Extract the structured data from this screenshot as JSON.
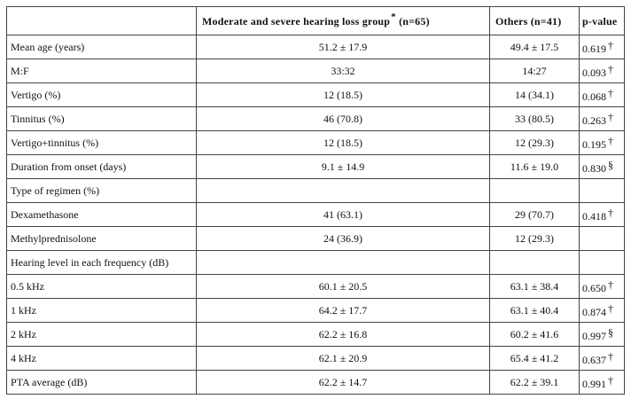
{
  "header": {
    "col1": "",
    "group": "Moderate and severe hearing loss group",
    "group_mark": "*",
    "group_n": "(n=65)",
    "others": "Others",
    "others_n": "(n=41)",
    "pvalue": "p-value"
  },
  "rows": [
    {
      "label": "Mean age (years)",
      "group": "51.2 ± 17.9",
      "others": "49.4 ± 17.5",
      "p": "0.619",
      "mark": "†"
    },
    {
      "label": "M:F",
      "group": "33:32",
      "others": "14:27",
      "p": "0.093",
      "mark": "†"
    },
    {
      "label": "Vertigo (%)",
      "group": "12 (18.5)",
      "others": "14 (34.1)",
      "p": "0.068",
      "mark": "†"
    },
    {
      "label": "Tinnitus (%)",
      "group": "46 (70.8)",
      "others": "33 (80.5)",
      "p": "0.263",
      "mark": "†"
    },
    {
      "label": "Vertigo+tinnitus (%)",
      "group": "12 (18.5)",
      "others": "12 (29.3)",
      "p": "0.195",
      "mark": "†"
    },
    {
      "label": "Duration from onset (days)",
      "group": "9.1 ± 14.9",
      "others": "11.6 ± 19.0",
      "p": "0.830",
      "mark": "§"
    },
    {
      "label": "Type of regimen (%)",
      "group": "",
      "others": "",
      "p": "",
      "mark": ""
    },
    {
      "label": "Dexamethasone",
      "group": "41 (63.1)",
      "others": "29 (70.7)",
      "p": "0.418",
      "mark": "†"
    },
    {
      "label": "Methylprednisolone",
      "group": "24 (36.9)",
      "others": "12 (29.3)",
      "p": "",
      "mark": ""
    },
    {
      "label": "Hearing level in each frequency (dB)",
      "group": "",
      "others": "",
      "p": "",
      "mark": ""
    },
    {
      "label": "0.5 kHz",
      "group": "60.1 ± 20.5",
      "others": "63.1 ± 38.4",
      "p": "0.650",
      "mark": "†"
    },
    {
      "label": "1 kHz",
      "group": "64.2 ± 17.7",
      "others": "63.1 ± 40.4",
      "p": "0.874",
      "mark": "†"
    },
    {
      "label": "2 kHz",
      "group": "62.2 ± 16.8",
      "others": "60.2 ± 41.6",
      "p": "0.997",
      "mark": "§"
    },
    {
      "label": "4 kHz",
      "group": "62.1 ± 20.9",
      "others": "65.4 ± 41.2",
      "p": "0.637",
      "mark": "†"
    },
    {
      "label": "PTA average (dB)",
      "group": "62.2 ± 14.7",
      "others": "62.2 ± 39.1",
      "p": "0.991",
      "mark": "†"
    }
  ]
}
